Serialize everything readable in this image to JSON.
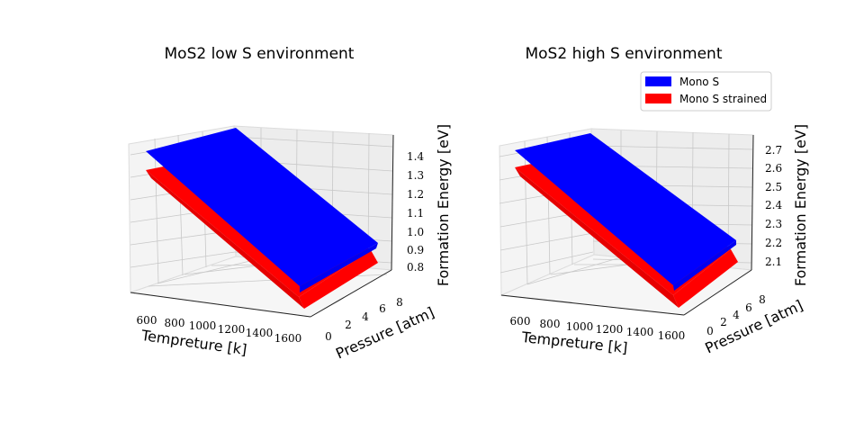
{
  "colors": {
    "series_0": "#0000ff",
    "series_1": "#ff0000",
    "pane": "#f2f2f2",
    "grid": "#c8c8c8"
  },
  "chart_data": [
    {
      "type": "surface3d",
      "title": "MoS2 low S environment",
      "xlabel": "Tempreture [k]",
      "ylabel": "Pressure [atm]",
      "zlabel": "Formation Energy [eV]",
      "x_ticks": [
        "600",
        "800",
        "1000",
        "1200",
        "1400",
        "1600"
      ],
      "y_ticks": [
        "0",
        "2",
        "4",
        "6",
        "8"
      ],
      "z_ticks": [
        "0.8",
        "0.9",
        "1.0",
        "1.1",
        "1.2",
        "1.3",
        "1.4"
      ],
      "xlim": [
        400,
        1700
      ],
      "ylim": [
        0,
        10
      ],
      "zlim": [
        0.72,
        1.5
      ],
      "grid": true,
      "series": [
        {
          "name": "Mono S",
          "z_at_corners": {
            "x_min_p_max": 1.45,
            "x_max_p_max": 0.9,
            "x_max_p_min": 0.86,
            "x_min_p_min": 1.43
          }
        },
        {
          "name": "Mono S strained",
          "z_at_corners": {
            "x_min_p_max": 1.34,
            "x_max_p_max": 0.78,
            "x_max_p_min": 0.73,
            "x_min_p_min": 1.3
          }
        }
      ]
    },
    {
      "type": "surface3d",
      "title": "MoS2 high S environment",
      "xlabel": "Tempreture [k]",
      "ylabel": "Pressure [atm]",
      "zlabel": "Formation Energy [eV]",
      "x_ticks": [
        "600",
        "800",
        "1000",
        "1200",
        "1400",
        "1600"
      ],
      "y_ticks": [
        "0",
        "2",
        "4",
        "6",
        "8"
      ],
      "z_ticks": [
        "2.1",
        "2.2",
        "2.3",
        "2.4",
        "2.5",
        "2.6",
        "2.7"
      ],
      "xlim": [
        400,
        1700
      ],
      "ylim": [
        0,
        10
      ],
      "zlim": [
        2.02,
        2.76
      ],
      "grid": true,
      "legend": {
        "placement": "top-right",
        "entries": [
          "Mono S",
          "Mono S strained"
        ]
      },
      "series": [
        {
          "name": "Mono S",
          "z_at_corners": {
            "x_min_p_max": 2.73,
            "x_max_p_max": 2.2,
            "x_max_p_min": 2.16,
            "x_min_p_min": 2.7
          }
        },
        {
          "name": "Mono S strained",
          "z_at_corners": {
            "x_min_p_max": 2.62,
            "x_max_p_max": 2.1,
            "x_max_p_min": 2.05,
            "x_min_p_min": 2.58
          }
        }
      ]
    }
  ]
}
